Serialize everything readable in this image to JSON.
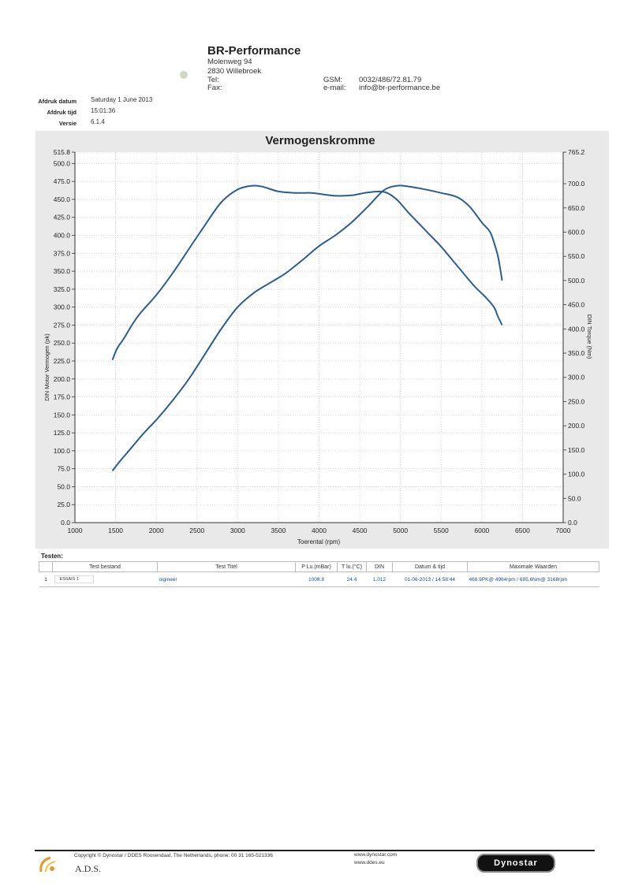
{
  "header": {
    "company": "BR-Performance",
    "street": "Molenweg 94",
    "city": "2830 Willebroek",
    "tel_label": "Tel:",
    "fax_label": "Fax:",
    "gsm_label": "GSM:",
    "gsm_value": "0032/486/72.81.79",
    "email_label": "e-mail:",
    "email_value": "info@br-performance.be"
  },
  "print_info": {
    "date_label": "Afdruk datum",
    "date_value": "Saturday 1 June 2013",
    "time_label": "Afdruk tijd",
    "time_value": "15:01:36",
    "version_label": "Versie",
    "version_value": "6.1.4"
  },
  "chart_data": {
    "type": "line",
    "title": "Vermogenskromme",
    "xlabel": "Toerental (rpm)",
    "ylabel": "DIN Motor Vermogen (pk)",
    "y2label": "DIN Torque (Nm)",
    "xlim": [
      1000,
      7000
    ],
    "ylim": [
      0,
      515.8
    ],
    "y2lim": [
      0,
      765.2
    ],
    "x_ticks": [
      "1000",
      "1500",
      "2000",
      "2500",
      "3000",
      "3500",
      "4000",
      "4500",
      "5000",
      "5500",
      "6000",
      "6500",
      "7000"
    ],
    "y_ticks": [
      "0.0",
      "25.0",
      "50.0",
      "75.0",
      "100.0",
      "125.0",
      "150.0",
      "175.0",
      "200.0",
      "225.0",
      "250.0",
      "275.0",
      "300.0",
      "325.0",
      "350.0",
      "375.0",
      "400.0",
      "425.0",
      "450.0",
      "475.0",
      "500.0",
      "515.8"
    ],
    "y2_ticks": [
      "0.0",
      "50.0",
      "100.0",
      "150.0",
      "200.0",
      "250.0",
      "300.0",
      "350.0",
      "400.0",
      "450.0",
      "500.0",
      "550.0",
      "600.0",
      "650.0",
      "700.0",
      "765.2"
    ],
    "grid": true,
    "line_color": "#2a5d94",
    "series": [
      {
        "axis": "left",
        "x": [
          1460,
          1550,
          1700,
          1850,
          2000,
          2200,
          2400,
          2600,
          2800,
          3000,
          3200,
          3400,
          3600,
          3800,
          4000,
          4200,
          4400,
          4600,
          4800,
          4964,
          5100,
          5300,
          5500,
          5700,
          5850,
          6000,
          6100,
          6150,
          6200,
          6250
        ],
        "y": [
          72,
          85,
          105,
          125,
          143,
          170,
          200,
          235,
          270,
          300,
          320,
          334,
          348,
          366,
          385,
          400,
          418,
          440,
          463,
          469,
          468,
          464,
          459,
          453,
          440,
          418,
          405,
          390,
          370,
          337
        ]
      },
      {
        "axis": "right",
        "x": [
          1460,
          1520,
          1600,
          1700,
          1800,
          2000,
          2200,
          2400,
          2600,
          2800,
          3000,
          3168,
          3300,
          3500,
          3700,
          3900,
          4000,
          4200,
          4400,
          4600,
          4800,
          4950,
          5100,
          5300,
          5500,
          5700,
          5900,
          6050,
          6150,
          6200,
          6250
        ],
        "y": [
          336,
          360,
          380,
          408,
          432,
          470,
          515,
          565,
          615,
          662,
          688,
          695.6,
          694,
          684,
          681,
          681,
          679,
          675,
          676,
          682,
          683,
          668,
          640,
          605,
          570,
          530,
          490,
          465,
          445,
          425,
          408
        ]
      }
    ]
  },
  "tests": {
    "label": "Testen:",
    "columns": [
      "Test bestand",
      "Test Titel",
      "P Lu.(mBar)",
      "T lu.(°C)",
      "DIN",
      "Datum & tijd",
      "Maximale Waarden"
    ],
    "rows": [
      {
        "index": "1",
        "file": "ESSAIS 1",
        "title": "oigineel",
        "pressure": "1008.8",
        "temp": "24.4",
        "din": "1.012",
        "datetime": "01-06-2013 / 14:58:44",
        "max": "468.9PK@ 4964rpm / 695.6Nm@ 3168rpm"
      }
    ]
  },
  "footer": {
    "copyright": "Copyright © Dynostar / DDES Roosendaal, The Netherlands, phone: 00 31 165-521336",
    "url1": "www.dynostar.com",
    "url2": "www.ddes.eu",
    "ads": "A.D.S.",
    "brand": "Dynostar"
  }
}
